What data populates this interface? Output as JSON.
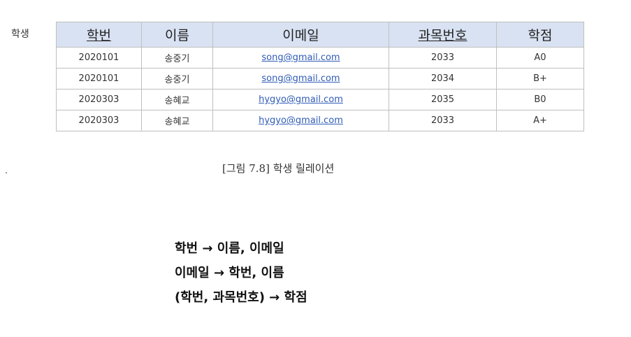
{
  "relation_name": "학생",
  "table": {
    "headers": [
      "학번",
      "이름",
      "이메일",
      "과목번호",
      "학점"
    ],
    "key_columns": [
      0,
      3
    ],
    "rows": [
      [
        "2020101",
        "송중기",
        "song@gmail.com",
        "2033",
        "A0"
      ],
      [
        "2020101",
        "송중기",
        "song@gmail.com",
        "2034",
        "B+"
      ],
      [
        "2020303",
        "송혜교",
        "hygyo@gmail.com",
        "2035",
        "B0"
      ],
      [
        "2020303",
        "송혜교",
        "hygyo@gmail.com",
        "2033",
        "A+"
      ]
    ]
  },
  "caption": "[그림 7.8] 학생 릴레이션",
  "dependencies": [
    "학번 → 이름, 이메일",
    "이메일 → 학번, 이름",
    "(학번, 과목번호) → 학점"
  ],
  "colors": {
    "header_bg": "#d9e2f2",
    "link": "#2f5bb7",
    "border": "#bfbfbf"
  }
}
